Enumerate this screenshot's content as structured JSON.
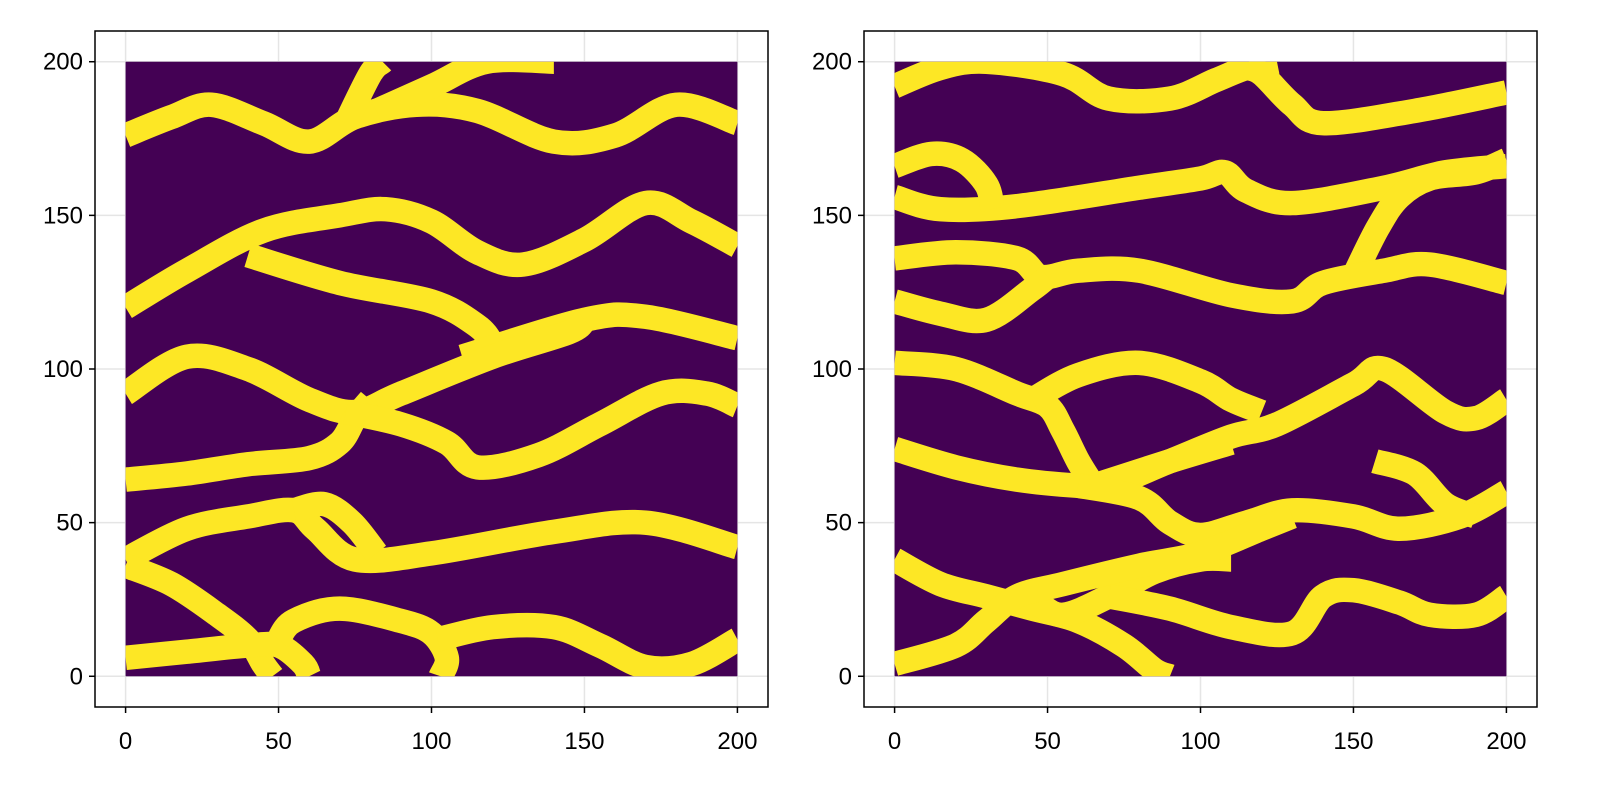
{
  "figure": {
    "background": "#ffffff",
    "colors": {
      "channel": "#fde725",
      "background_facies": "#440154",
      "grid": "#e5e5e5",
      "frame": "#000000"
    }
  },
  "chart_data": [
    {
      "type": "heatmap",
      "title": "",
      "xlabel": "",
      "ylabel": "",
      "xlim": [
        -10,
        210
      ],
      "ylim": [
        -10,
        210
      ],
      "xticks": [
        "0",
        "50",
        "100",
        "150",
        "200"
      ],
      "yticks": [
        "0",
        "50",
        "100",
        "150",
        "200"
      ],
      "grid": true,
      "legend": "none",
      "colormap": [
        "#440154",
        "#fde725"
      ],
      "values_range": [
        0,
        1
      ],
      "channels": [
        {
          "width": 8,
          "points": [
            [
              0,
              176
            ],
            [
              15,
              182
            ],
            [
              28,
              186
            ],
            [
              45,
              180
            ],
            [
              60,
              174
            ],
            [
              75,
              182
            ],
            [
              95,
              186
            ],
            [
              115,
              184
            ],
            [
              140,
              174
            ],
            [
              160,
              176
            ],
            [
              180,
              186
            ],
            [
              200,
              180
            ]
          ]
        },
        {
          "width": 8,
          "points": [
            [
              72,
              180
            ],
            [
              80,
              196
            ],
            [
              84,
              200
            ]
          ]
        },
        {
          "width": 8,
          "points": [
            [
              82,
              184
            ],
            [
              100,
              192
            ],
            [
              118,
              200
            ],
            [
              140,
              200
            ]
          ]
        },
        {
          "width": 8,
          "points": [
            [
              0,
              120
            ],
            [
              20,
              132
            ],
            [
              45,
              145
            ],
            [
              70,
              150
            ],
            [
              85,
              152
            ],
            [
              100,
              148
            ],
            [
              115,
              138
            ],
            [
              130,
              134
            ],
            [
              150,
              142
            ],
            [
              170,
              154
            ],
            [
              185,
              148
            ],
            [
              200,
              140
            ]
          ]
        },
        {
          "width": 8,
          "points": [
            [
              40,
              137
            ],
            [
              70,
              128
            ],
            [
              100,
              122
            ],
            [
              115,
              114
            ],
            [
              120,
              108
            ]
          ]
        },
        {
          "width": 8,
          "points": [
            [
              110,
              104
            ],
            [
              150,
              116
            ],
            [
              170,
              117
            ],
            [
              200,
              110
            ]
          ]
        },
        {
          "width": 8,
          "points": [
            [
              0,
              92
            ],
            [
              20,
              104
            ],
            [
              40,
              100
            ],
            [
              60,
              90
            ],
            [
              75,
              86
            ],
            [
              90,
              92
            ],
            [
              120,
              104
            ],
            [
              145,
              112
            ],
            [
              150,
              116
            ]
          ]
        },
        {
          "width": 8,
          "points": [
            [
              0,
              64
            ],
            [
              20,
              66
            ],
            [
              40,
              69
            ],
            [
              60,
              71
            ],
            [
              70,
              76
            ],
            [
              75,
              84
            ],
            [
              80,
              90
            ]
          ]
        },
        {
          "width": 8,
          "points": [
            [
              72,
              86
            ],
            [
              90,
              82
            ],
            [
              105,
              76
            ],
            [
              115,
              68
            ],
            [
              135,
              72
            ],
            [
              155,
              82
            ],
            [
              175,
              92
            ],
            [
              190,
              92
            ],
            [
              200,
              88
            ]
          ]
        },
        {
          "width": 8,
          "points": [
            [
              0,
              38
            ],
            [
              20,
              48
            ],
            [
              40,
              52
            ],
            [
              55,
              54
            ],
            [
              62,
              48
            ],
            [
              75,
              38
            ],
            [
              100,
              40
            ],
            [
              140,
              47
            ],
            [
              170,
              50
            ],
            [
              200,
              42
            ]
          ]
        },
        {
          "width": 8,
          "points": [
            [
              55,
              54
            ],
            [
              65,
              56
            ],
            [
              74,
              50
            ],
            [
              82,
              40
            ]
          ]
        },
        {
          "width": 8,
          "points": [
            [
              0,
              36
            ],
            [
              15,
              30
            ],
            [
              30,
              20
            ],
            [
              40,
              12
            ],
            [
              45,
              4
            ],
            [
              48,
              0
            ]
          ]
        },
        {
          "width": 8,
          "points": [
            [
              0,
              6
            ],
            [
              20,
              8
            ],
            [
              40,
              10
            ],
            [
              50,
              10
            ],
            [
              58,
              4
            ],
            [
              60,
              0
            ]
          ]
        },
        {
          "width": 8,
          "points": [
            [
              50,
              12
            ],
            [
              55,
              18
            ],
            [
              70,
              22
            ],
            [
              90,
              18
            ],
            [
              100,
              14
            ],
            [
              105,
              6
            ],
            [
              103,
              0
            ]
          ]
        },
        {
          "width": 8,
          "points": [
            [
              102,
              12
            ],
            [
              120,
              16
            ],
            [
              140,
              16
            ],
            [
              155,
              10
            ],
            [
              170,
              3
            ],
            [
              185,
              4
            ],
            [
              200,
              12
            ]
          ]
        }
      ]
    },
    {
      "type": "heatmap",
      "title": "",
      "xlabel": "",
      "ylabel": "",
      "xlim": [
        -10,
        210
      ],
      "ylim": [
        -10,
        210
      ],
      "xticks": [
        "0",
        "50",
        "100",
        "150",
        "200"
      ],
      "yticks": [
        "0",
        "50",
        "100",
        "150",
        "200"
      ],
      "grid": true,
      "legend": "none",
      "colormap": [
        "#440154",
        "#fde725"
      ],
      "values_range": [
        0,
        1
      ],
      "channels": [
        {
          "width": 8,
          "points": [
            [
              0,
              192
            ],
            [
              15,
              198
            ],
            [
              30,
              200
            ],
            [
              55,
              196
            ],
            [
              70,
              188
            ],
            [
              90,
              188
            ],
            [
              105,
              194
            ],
            [
              115,
              198
            ],
            [
              125,
              200
            ]
          ]
        },
        {
          "width": 8,
          "points": [
            [
              115,
              198
            ],
            [
              120,
              196
            ],
            [
              130,
              186
            ],
            [
              140,
              180
            ],
            [
              170,
              184
            ],
            [
              200,
              190
            ]
          ]
        },
        {
          "width": 8,
          "points": [
            [
              0,
              156
            ],
            [
              15,
              152
            ],
            [
              40,
              153
            ],
            [
              80,
              159
            ],
            [
              100,
              162
            ],
            [
              108,
              164
            ],
            [
              115,
              158
            ],
            [
              130,
              154
            ],
            [
              160,
              159
            ],
            [
              180,
              164
            ],
            [
              200,
              166
            ]
          ]
        },
        {
          "width": 8,
          "points": [
            [
              0,
              166
            ],
            [
              12,
              170
            ],
            [
              22,
              168
            ],
            [
              30,
              160
            ],
            [
              32,
              152
            ]
          ]
        },
        {
          "width": 8,
          "points": [
            [
              150,
              130
            ],
            [
              158,
              146
            ],
            [
              165,
              156
            ],
            [
              175,
              162
            ],
            [
              190,
              164
            ],
            [
              200,
              168
            ]
          ]
        },
        {
          "width": 8,
          "points": [
            [
              0,
              136
            ],
            [
              20,
              138
            ],
            [
              40,
              136
            ],
            [
              48,
              130
            ],
            [
              60,
              132
            ],
            [
              80,
              132
            ],
            [
              110,
              124
            ],
            [
              130,
              122
            ],
            [
              140,
              128
            ],
            [
              160,
              132
            ],
            [
              175,
              134
            ],
            [
              200,
              128
            ]
          ]
        },
        {
          "width": 8,
          "points": [
            [
              0,
              122
            ],
            [
              15,
              118
            ],
            [
              30,
              116
            ],
            [
              45,
              126
            ],
            [
              50,
              130
            ]
          ]
        },
        {
          "width": 8,
          "points": [
            [
              0,
              102
            ],
            [
              20,
              100
            ],
            [
              40,
              92
            ],
            [
              50,
              88
            ],
            [
              55,
              80
            ],
            [
              60,
              70
            ],
            [
              65,
              62
            ]
          ]
        },
        {
          "width": 8,
          "points": [
            [
              45,
              90
            ],
            [
              60,
              98
            ],
            [
              80,
              102
            ],
            [
              100,
              96
            ],
            [
              110,
              90
            ],
            [
              120,
              86
            ]
          ]
        },
        {
          "width": 8,
          "points": [
            [
              0,
              74
            ],
            [
              20,
              68
            ],
            [
              40,
              64
            ],
            [
              60,
              62
            ],
            [
              70,
              62
            ],
            [
              90,
              70
            ],
            [
              110,
              78
            ],
            [
              125,
              82
            ],
            [
              150,
              95
            ],
            [
              160,
              100
            ],
            [
              180,
              86
            ],
            [
              190,
              84
            ],
            [
              200,
              90
            ]
          ]
        },
        {
          "width": 8,
          "points": [
            [
              65,
              62
            ],
            [
              90,
              70
            ],
            [
              110,
              76
            ]
          ]
        },
        {
          "width": 8,
          "points": [
            [
              60,
              62
            ],
            [
              80,
              58
            ],
            [
              90,
              50
            ],
            [
              100,
              46
            ],
            [
              115,
              50
            ],
            [
              130,
              54
            ],
            [
              150,
              52
            ],
            [
              165,
              48
            ],
            [
              185,
              52
            ],
            [
              200,
              60
            ]
          ]
        },
        {
          "width": 8,
          "points": [
            [
              157,
              70
            ],
            [
              170,
              66
            ],
            [
              180,
              56
            ],
            [
              190,
              52
            ]
          ]
        },
        {
          "width": 8,
          "points": [
            [
              0,
              38
            ],
            [
              15,
              30
            ],
            [
              30,
              26
            ],
            [
              45,
              22
            ],
            [
              60,
              18
            ],
            [
              75,
              10
            ],
            [
              85,
              2
            ],
            [
              90,
              0
            ]
          ]
        },
        {
          "width": 8,
          "points": [
            [
              30,
              24
            ],
            [
              45,
              24
            ],
            [
              55,
              20
            ],
            [
              70,
              26
            ],
            [
              85,
              34
            ],
            [
              100,
              38
            ],
            [
              110,
              38
            ]
          ]
        },
        {
          "width": 8,
          "points": [
            [
              0,
              4
            ],
            [
              20,
              10
            ],
            [
              30,
              18
            ],
            [
              40,
              26
            ],
            [
              55,
              30
            ],
            [
              80,
              36
            ],
            [
              100,
              40
            ],
            [
              120,
              48
            ],
            [
              130,
              52
            ]
          ]
        },
        {
          "width": 8,
          "points": [
            [
              70,
              26
            ],
            [
              90,
              22
            ],
            [
              110,
              16
            ],
            [
              130,
              14
            ],
            [
              140,
              26
            ],
            [
              150,
              28
            ],
            [
              165,
              24
            ],
            [
              175,
              20
            ],
            [
              190,
              20
            ],
            [
              200,
              26
            ]
          ]
        }
      ]
    }
  ]
}
